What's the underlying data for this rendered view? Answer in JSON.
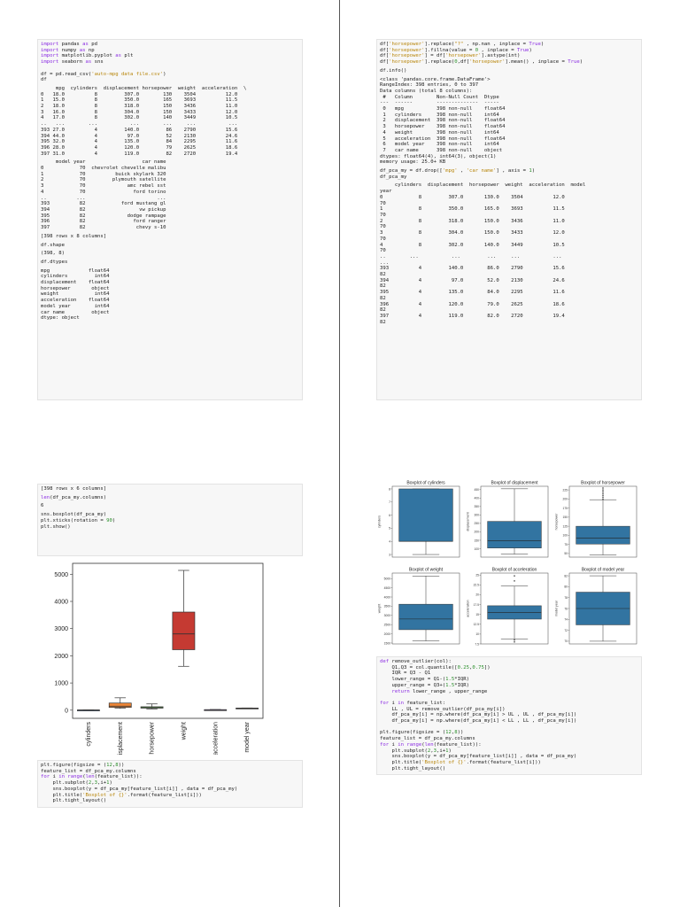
{
  "left_top": {
    "code1": [
      "import pandas as pd",
      "import numpy as np",
      "import matplotlib.pyplot as plt",
      "import seaborn as sns",
      "",
      "df = pd.read_csv('auto-mpg data file.csv')",
      "df"
    ],
    "df_table1": [
      "     mpg  cylinders  displacement horsepower  weight  acceleration  \\",
      "0   18.0          8         307.0        130    3504          12.0",
      "1   15.0          8         350.0        165    3693          11.5",
      "2   18.0          8         318.0        150    3436          11.0",
      "3   16.0          8         304.0        150    3433          12.0",
      "4   17.0          8         302.0        140    3449          10.5",
      "..   ...        ...           ...        ...     ...           ...",
      "393 27.0          4         140.0         86    2790          15.6",
      "394 44.0          4          97.0         52    2130          24.6",
      "395 32.0          4         135.0         84    2295          11.6",
      "396 28.0          4         120.0         79    2625          18.6",
      "397 31.0          4         119.0         82    2720          19.4"
    ],
    "df_table2": [
      "     model year                   car name",
      "0            70  chevrolet chevelle malibu",
      "1            70          buick skylark 320",
      "2            70         plymouth satellite",
      "3            70              amc rebel sst",
      "4            70                ford torino",
      "..          ...                        ...",
      "393          82            ford mustang gl",
      "394          82                  vw pickup",
      "395          82              dodge rampage",
      "396          82                ford ranger",
      "397          82                 chevy s-10"
    ],
    "rows_note": "[398 rows x 8 columns]",
    "shape_cmd": "df.shape",
    "shape_out": "(398, 8)",
    "dtypes_cmd": "df.dtypes",
    "dtypes_out": [
      "mpg             float64",
      "cylinders         int64",
      "displacement    float64",
      "horsepower       object",
      "weight            int64",
      "acceleration    float64",
      "model year        int64",
      "car name         object",
      "dtype: object"
    ]
  },
  "right_top": {
    "code1": [
      "df['horsepower'].replace(\"?\" , np.nan , inplace = True)",
      "df['horsepower'].fillna(value = 0 , inplace = True)",
      "df['horsepower'] = df['horsepower'].astype(int)",
      "df['horsepower'].replace(0,df['horsepower'].mean() , inplace = True)"
    ],
    "info_cmd": "df.info()",
    "info_out": [
      "<class 'pandas.core.frame.DataFrame'>",
      "RangeIndex: 398 entries, 0 to 397",
      "Data columns (total 8 columns):",
      " #   Column        Non-Null Count  Dtype",
      "---  ------        --------------  -----",
      " 0   mpg           398 non-null    float64",
      " 1   cylinders     398 non-null    int64",
      " 2   displacement  398 non-null    float64",
      " 3   horsepower    398 non-null    float64",
      " 4   weight        398 non-null    int64",
      " 5   acceleration  398 non-null    float64",
      " 6   model year    398 non-null    int64",
      " 7   car name      398 non-null    object",
      "dtypes: float64(4), int64(3), object(1)",
      "memory usage: 25.0+ KB"
    ],
    "drop_code": [
      "df_pca_my = df.drop(['mpg' , 'car name'] , axis = 1)",
      "df_pca_my"
    ],
    "pca_table": [
      "     cylinders  displacement  horsepower  weight  acceleration  model",
      "year",
      "0            8         307.0       130.0    3504          12.0",
      "70",
      "1            8         350.0       165.0    3693          11.5",
      "70",
      "2            8         318.0       150.0    3436          11.0",
      "70",
      "3            8         304.0       150.0    3433          12.0",
      "70",
      "4            8         302.0       140.0    3449          10.5",
      "70",
      "..        ...           ...         ...     ...           ...",
      "...",
      "393          4         140.0        86.0    2790          15.6",
      "82",
      "394          4          97.0        52.0    2130          24.6",
      "82",
      "395          4         135.0        84.0    2295          11.6",
      "82",
      "396          4         120.0        79.0    2625          18.6",
      "82",
      "397          4         119.0        82.0    2720          19.4",
      "82"
    ]
  },
  "left_bottom": {
    "rows_note": "[398 rows x 6 columns]",
    "len_cmd": "len(df_pca_my.columns)",
    "len_out": "6",
    "plot_code": [
      "sns.boxplot(df_pca_my)",
      "plt.xticks(rotation = 90)",
      "plt.show()"
    ],
    "figure_code": [
      "plt.figure(figsize = (12,8))",
      "feature_list = df_pca_my.columns",
      "for i in range(len(feature_list)):",
      "    plt.subplot(2,3,i+1)",
      "    sns.boxplot(y = df_pca_my[feature_list[i]] , data = df_pca_my)",
      "    plt.title('Boxplot of {}'.format(feature_list[i]))",
      "    plt.tight_layout()"
    ]
  },
  "right_bottom": {
    "outlier_code": [
      "def remove_outlier(col):",
      "    Q1,Q3 = col.quantile([0.25,0.75])",
      "    IQR = Q3 - Q1",
      "    lower_range = Q1-(1.5*IQR)",
      "    upper_range = Q3+(1.5*IQR)",
      "    return lower_range , upper_range",
      "",
      "for i in feature_list:",
      "    LL , UL = remove_outlier(df_pca_my[i])",
      "    df_pca_my[i] = np.where(df_pca_my[i] > UL , UL , df_pca_my[i])",
      "    df_pca_my[i] = np.where(df_pca_my[i] < LL , LL , df_pca_my[i])",
      "",
      "plt.figure(figsize = (12,8))",
      "feature_list = df_pca_my.columns",
      "for i in range(len(feature_list)):",
      "    plt.subplot(2,3,i+1)",
      "    sns.boxplot(y = df_pca_my[feature_list[i]] , data = df_pca_my)",
      "    plt.title('Boxplot of {}'.format(feature_list[i]))",
      "    plt.tight_layout()"
    ]
  },
  "chart_data": [
    {
      "type": "box",
      "title": "",
      "categories": [
        "cylinders",
        "displacement",
        "horsepower",
        "weight",
        "acceleration",
        "model year"
      ],
      "colors": [
        "#3b75af",
        "#ef8636",
        "#519e3e",
        "#c53a32",
        "#8d69b8",
        "#84584e"
      ],
      "boxes": [
        {
          "min": 3,
          "q1": 4,
          "median": 4,
          "q3": 8,
          "max": 8
        },
        {
          "min": 68,
          "q1": 104,
          "median": 148,
          "q3": 262,
          "max": 455
        },
        {
          "min": 46,
          "q1": 76,
          "median": 92,
          "q3": 125,
          "max": 230
        },
        {
          "min": 1613,
          "q1": 2224,
          "median": 2804,
          "q3": 3608,
          "max": 5140
        },
        {
          "min": 8,
          "q1": 13.8,
          "median": 15.5,
          "q3": 17.2,
          "max": 24.8
        },
        {
          "min": 70,
          "q1": 73,
          "median": 76,
          "q3": 79,
          "max": 82
        }
      ],
      "yticks": [
        0,
        1000,
        2000,
        3000,
        4000,
        5000
      ],
      "ylim": [
        -300,
        5400
      ]
    },
    {
      "type": "box",
      "layout": "2x3 subplots",
      "subplots": [
        {
          "title": "Boxplot of cylinders",
          "ylabel": "cylinders",
          "min": 3,
          "q1": 4,
          "median": 4,
          "q3": 8,
          "max": 8,
          "ylim": [
            2.8,
            8.2
          ],
          "yticks": [
            3,
            4,
            5,
            6,
            7,
            8
          ]
        },
        {
          "title": "Boxplot of displacement",
          "ylabel": "displacement",
          "min": 68,
          "q1": 104,
          "median": 148,
          "q3": 262,
          "max": 455,
          "ylim": [
            50,
            470
          ],
          "yticks": [
            100,
            150,
            200,
            250,
            300,
            350,
            400,
            450
          ]
        },
        {
          "title": "Boxplot of horsepower",
          "ylabel": "horsepower",
          "min": 46,
          "q1": 76,
          "median": 92,
          "q3": 125,
          "max": 198,
          "outliers": [
            200,
            205,
            210,
            215,
            220,
            225,
            230
          ],
          "ylim": [
            40,
            235
          ],
          "yticks": [
            50,
            75,
            100,
            125,
            150,
            175,
            200,
            225
          ]
        },
        {
          "title": "Boxplot of weight",
          "ylabel": "weight",
          "min": 1613,
          "q1": 2224,
          "median": 2804,
          "q3": 3608,
          "max": 5140,
          "ylim": [
            1450,
            5300
          ],
          "yticks": [
            1500,
            2000,
            2500,
            3000,
            3500,
            4000,
            4500,
            5000
          ]
        },
        {
          "title": "Boxplot of acceleration",
          "ylabel": "acceleration",
          "min": 8.8,
          "q1": 13.8,
          "median": 15.5,
          "q3": 17.2,
          "max": 22.2,
          "outliers": [
            8,
            8.5,
            23.5,
            24.8
          ],
          "ylim": [
            7.5,
            25.5
          ],
          "yticks": [
            7.5,
            10,
            12.5,
            15,
            17.5,
            20,
            22.5,
            25
          ]
        },
        {
          "title": "Boxplot of model year",
          "ylabel": "model year",
          "min": 70,
          "q1": 73,
          "median": 76,
          "q3": 79,
          "max": 82,
          "ylim": [
            69.5,
            82.5
          ],
          "yticks": [
            70,
            72,
            74,
            76,
            78,
            80,
            82
          ]
        }
      ]
    }
  ]
}
